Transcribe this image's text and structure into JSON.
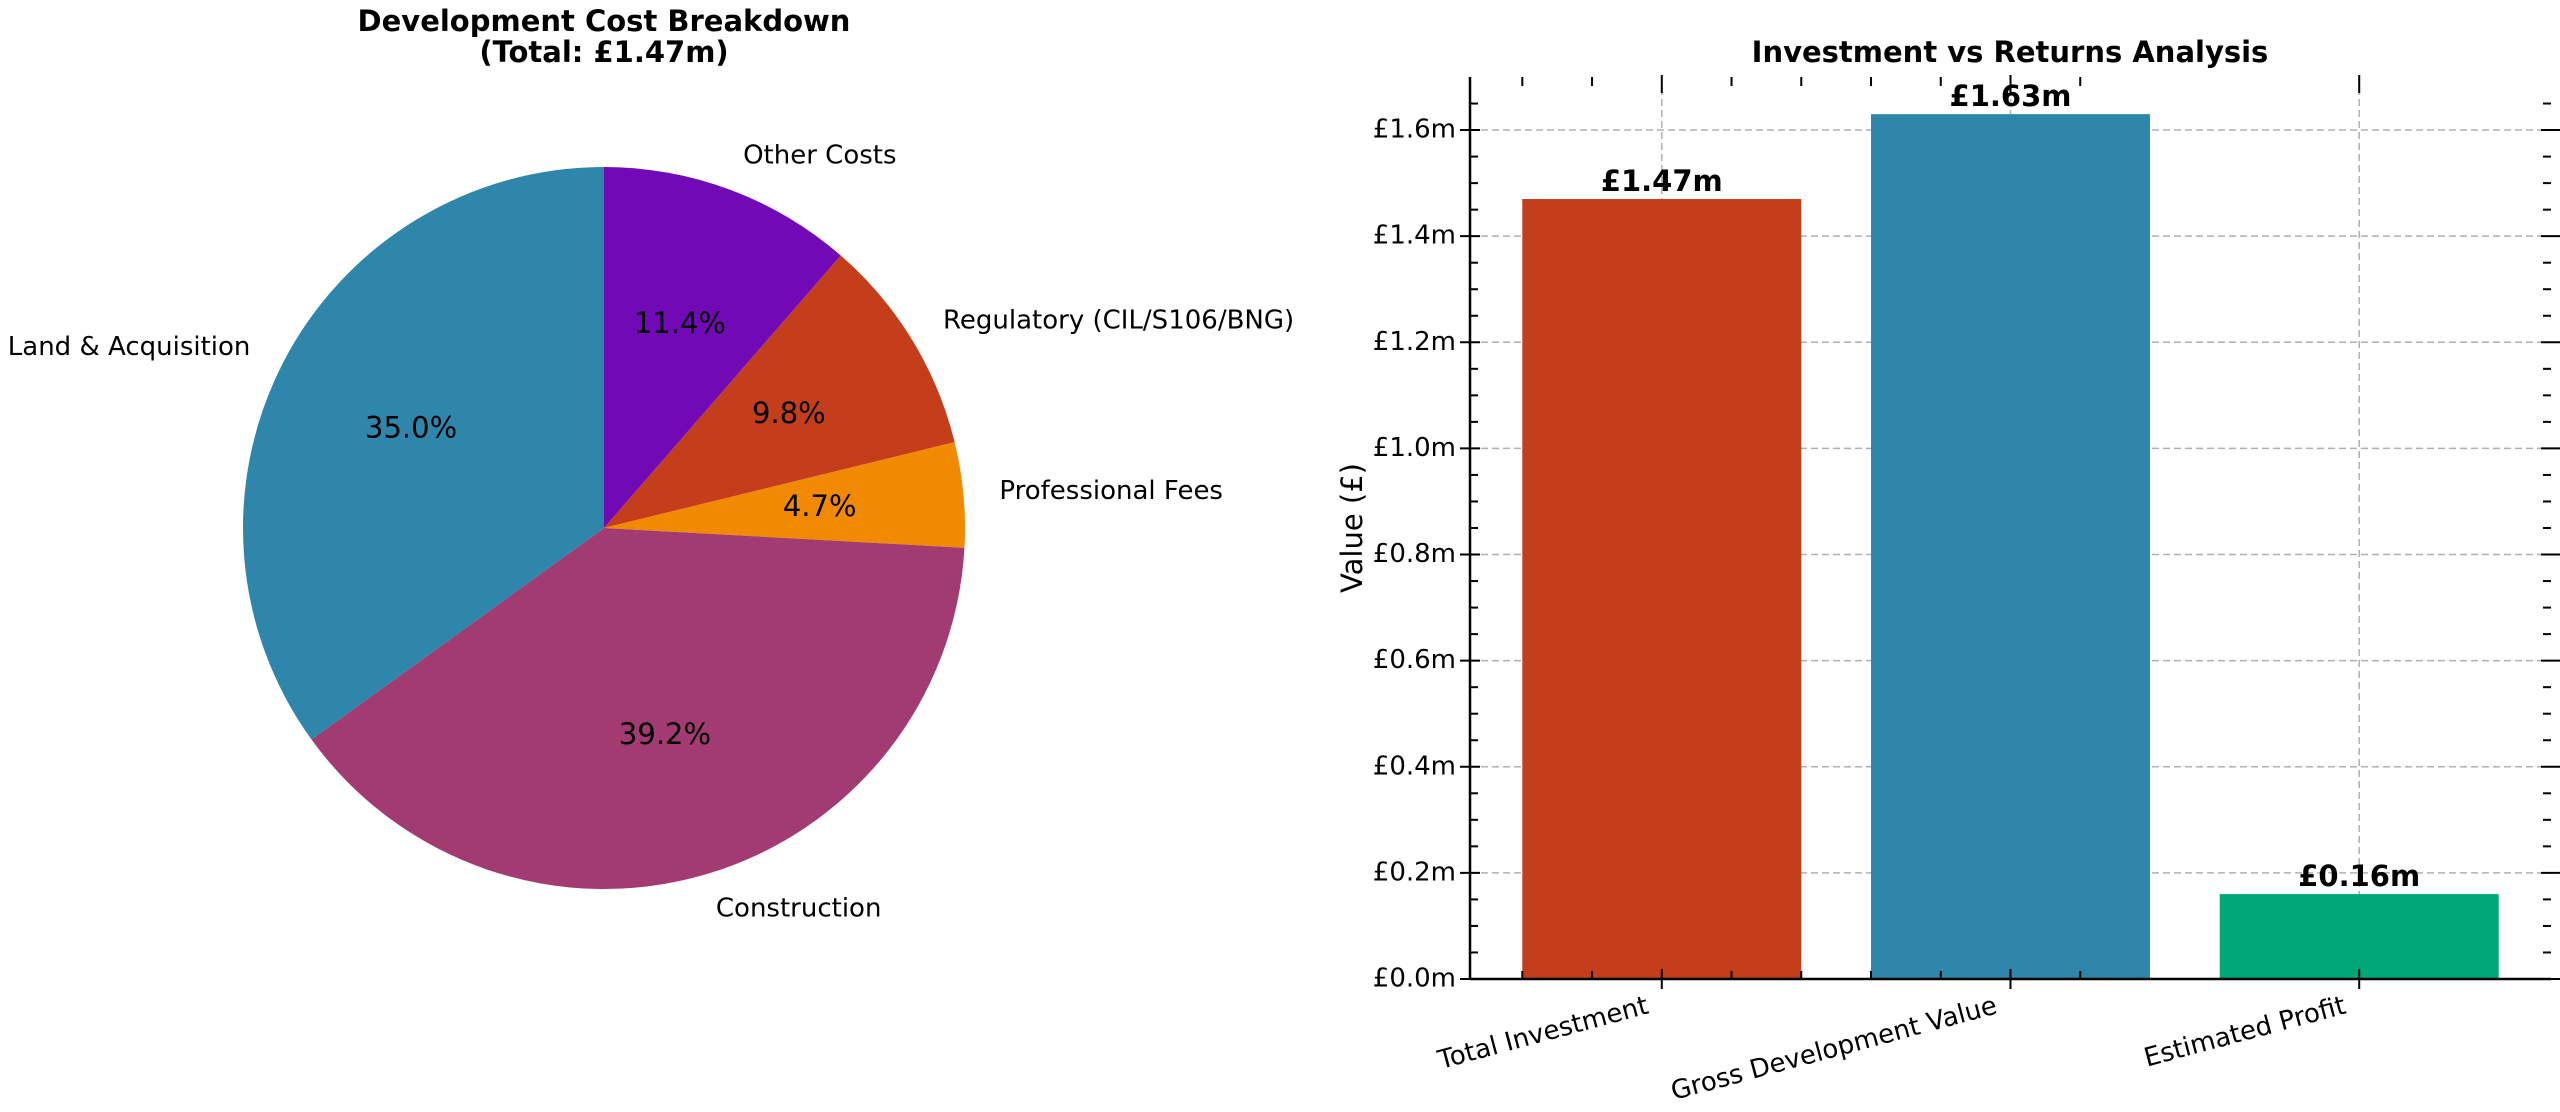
{
  "chart_data": [
    {
      "type": "pie",
      "title": "Development Cost Breakdown",
      "subtitle": "(Total: £1.47m)",
      "slices": [
        {
          "label": "Other Costs",
          "percent": 11.4,
          "pct_label": "11.4%",
          "color": "#7209b7"
        },
        {
          "label": "Regulatory (CIL/S106/BNG)",
          "percent": 9.8,
          "pct_label": "9.8%",
          "color": "#c43e1c"
        },
        {
          "label": "Professional Fees",
          "percent": 4.7,
          "pct_label": "4.7%",
          "color": "#f18a01"
        },
        {
          "label": "Construction",
          "percent": 39.2,
          "pct_label": "39.2%",
          "color": "#a23b72"
        },
        {
          "label": "Land & Acquisition",
          "percent": 35.0,
          "pct_label": "35.0%",
          "color": "#2e86ab"
        }
      ]
    },
    {
      "type": "bar",
      "title": "Investment vs Returns Analysis",
      "xlabel": "",
      "ylabel": "Value (£)",
      "ylim": [
        0,
        1.7
      ],
      "grid": true,
      "categories": [
        "Total Investment",
        "Gross Development Value",
        "Estimated Profit"
      ],
      "values": [
        1.47,
        1.63,
        0.16
      ],
      "value_labels": [
        "£1.47m",
        "£1.63m",
        "£0.16m"
      ],
      "colors": [
        "#c43e1c",
        "#2e86ab",
        "#00a878"
      ],
      "y_ticks": [
        0.0,
        0.2,
        0.4,
        0.6,
        0.8,
        1.0,
        1.2,
        1.4,
        1.6
      ],
      "y_tick_labels": [
        "£0.0m",
        "£0.2m",
        "£0.4m",
        "£0.6m",
        "£0.8m",
        "£1.0m",
        "£1.2m",
        "£1.4m",
        "£1.6m"
      ]
    }
  ]
}
